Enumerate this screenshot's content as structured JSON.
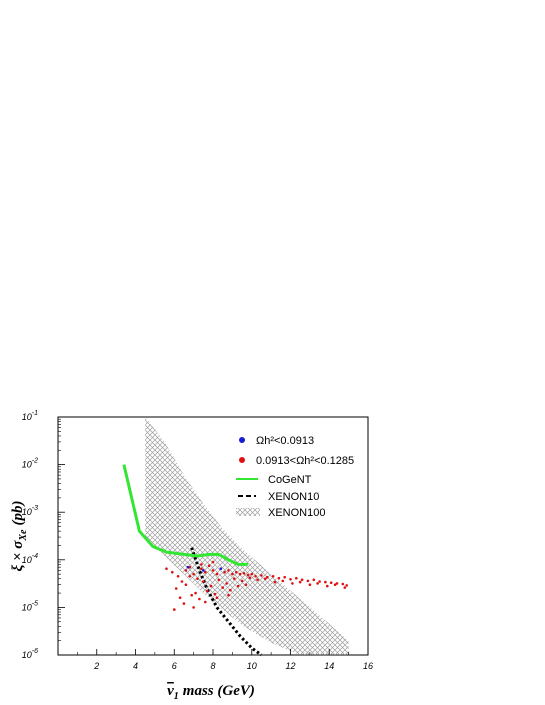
{
  "chart_data": {
    "type": "scatter",
    "xlabel_main": "ν",
    "xlabel_sub": "1",
    "xlabel_rest": "mass (GeV)",
    "ylabel_main": "ξ × σ",
    "ylabel_sub": "Xe",
    "ylabel_rest": "(pb)",
    "xlim": [
      0,
      16
    ],
    "ylim": [
      1e-06,
      0.1
    ],
    "yscale": "log",
    "x_ticks": [
      "2",
      "4",
      "6",
      "8",
      "10",
      "12",
      "14",
      "16"
    ],
    "y_ticks": [
      {
        "base": "10",
        "exp": "-1"
      },
      {
        "base": "10",
        "exp": "-2"
      },
      {
        "base": "10",
        "exp": "-3"
      },
      {
        "base": "10",
        "exp": "-4"
      },
      {
        "base": "10",
        "exp": "-5"
      },
      {
        "base": "10",
        "exp": "-6"
      }
    ],
    "legend_position": "top-right",
    "legend": [
      {
        "label": "Ωh²<0.0913",
        "marker": "dot",
        "color": "#1a1ad6"
      },
      {
        "label": "0.0913<Ωh²<0.1285",
        "marker": "dot",
        "color": "#e01010"
      },
      {
        "label": "CoGeNT",
        "marker": "line",
        "color": "#33e633"
      },
      {
        "label": "XENON10",
        "marker": "dashed",
        "color": "#000000"
      },
      {
        "label": "XENON100",
        "marker": "hatch",
        "color": "#9a9a9a"
      }
    ],
    "cogent": {
      "x": [
        3.4,
        4.2,
        4.9,
        5.6,
        6.5,
        7.2,
        7.8,
        8.3,
        8.8,
        9.3,
        9.8
      ],
      "y": [
        0.01,
        0.0004,
        0.00019,
        0.000145,
        0.00013,
        0.00012,
        0.00013,
        0.00013,
        0.0001,
        8e-05,
        8e-05
      ]
    },
    "xenon10": {
      "x": [
        6.9,
        7.3,
        7.7,
        8.2,
        8.8,
        9.4,
        10.0,
        10.5
      ],
      "y": [
        0.00018,
        6e-05,
        2.4e-05,
        1e-05,
        5e-06,
        2.5e-06,
        1.4e-06,
        1e-06
      ]
    },
    "xenon100_band": {
      "x": [
        4.5,
        5.5,
        6.5,
        7.5,
        8.5,
        9.5,
        11.0,
        12.5,
        14.0,
        15.0
      ],
      "y_upper": [
        0.1,
        0.03,
        0.006,
        0.0015,
        0.00045,
        0.00017,
        5e-05,
        1.5e-05,
        4.5e-06,
        2e-06
      ],
      "y_lower": [
        0.0003,
        0.00012,
        5e-05,
        2e-05,
        9e-06,
        4.2e-06,
        1.8e-06,
        1e-06,
        1e-06,
        1e-06
      ]
    },
    "red_points": {
      "x": [
        5.6,
        5.9,
        6.2,
        6.4,
        6.6,
        6.8,
        7.0,
        7.2,
        7.4,
        7.6,
        7.8,
        8.0,
        8.2,
        8.4,
        8.6,
        8.8,
        9.0,
        9.2,
        9.4,
        9.6,
        9.8,
        10.0,
        10.2,
        10.5,
        10.8,
        11.1,
        11.4,
        11.7,
        12.0,
        12.3,
        12.6,
        12.9,
        13.2,
        13.5,
        13.8,
        14.1,
        14.4,
        14.7,
        14.9,
        6.1,
        6.6,
        7.1,
        7.5,
        7.9,
        8.3,
        8.7,
        9.1,
        9.5,
        9.9,
        10.3,
        10.7,
        11.2,
        11.6,
        12.1,
        12.5,
        13.0,
        13.4,
        13.9,
        14.3,
        14.8,
        6.3,
        6.9,
        7.3,
        7.7,
        8.1,
        8.5,
        8.9,
        9.3,
        9.7,
        6.0,
        6.5,
        7.0,
        7.6,
        8.2,
        8.8,
        6.8,
        7.4,
        8.0
      ],
      "y": [
        6.5e-05,
        5.5e-05,
        4.5e-05,
        3.5e-05,
        6e-05,
        7e-05,
        5e-05,
        4e-05,
        6.5e-05,
        5.5e-05,
        7.5e-05,
        6e-05,
        5e-05,
        6.5e-05,
        5.5e-05,
        6e-05,
        5e-05,
        5.5e-05,
        5e-05,
        5.2e-05,
        4.8e-05,
        5e-05,
        4.5e-05,
        4.7e-05,
        4.3e-05,
        4.5e-05,
        4.1e-05,
        4.3e-05,
        3.9e-05,
        4.1e-05,
        3.8e-05,
        3.6e-05,
        3.8e-05,
        3.5e-05,
        3.4e-05,
        3.3e-05,
        3.2e-05,
        3.1e-05,
        2.9e-05,
        2.5e-05,
        3e-05,
        2e-05,
        3.5e-05,
        2.8e-05,
        3.8e-05,
        3.2e-05,
        4e-05,
        3.6e-05,
        4.2e-05,
        3.8e-05,
        4e-05,
        3.4e-05,
        3.6e-05,
        3.2e-05,
        3.4e-05,
        3e-05,
        3.2e-05,
        2.8e-05,
        3e-05,
        2.6e-05,
        1.6e-05,
        1.8e-05,
        1.5e-05,
        2.2e-05,
        1.9e-05,
        2.6e-05,
        2.3e-05,
        2.8e-05,
        3e-05,
        9e-06,
        1.2e-05,
        1e-05,
        1.3e-05,
        1.6e-05,
        1.8e-05,
        4.5e-05,
        8e-05,
        9e-05
      ]
    },
    "blue_points": {
      "x": [
        6.7,
        7.5,
        8.4
      ],
      "y": [
        7e-05,
        6e-05,
        6.5e-05
      ]
    }
  }
}
